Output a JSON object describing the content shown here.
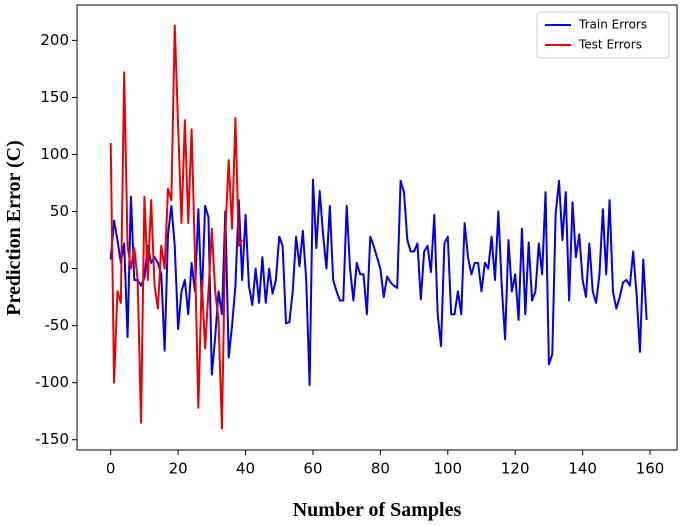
{
  "chart_data": {
    "type": "line",
    "xlabel": "Number of Samples",
    "ylabel": "Prediction Error (C)",
    "legend": "upper right",
    "xlim": [
      -10,
      168
    ],
    "xticks": [
      0,
      20,
      40,
      60,
      80,
      100,
      120,
      140,
      160
    ],
    "ylim": [
      -159,
      231
    ],
    "yticks": [
      -150,
      -100,
      -50,
      0,
      50,
      100,
      150,
      200
    ],
    "series": [
      {
        "name": "Train Errors",
        "color": "#0000ee",
        "x": [
          0,
          1,
          2,
          3,
          4,
          5,
          6,
          7,
          8,
          9,
          10,
          11,
          12,
          13,
          14,
          15,
          16,
          17,
          18,
          19,
          20,
          21,
          22,
          23,
          24,
          25,
          26,
          27,
          28,
          29,
          30,
          31,
          32,
          33,
          34,
          35,
          36,
          37,
          38,
          39,
          40,
          41,
          42,
          43,
          44,
          45,
          46,
          47,
          48,
          49,
          50,
          51,
          52,
          53,
          54,
          55,
          56,
          57,
          58,
          59,
          60,
          61,
          62,
          63,
          64,
          65,
          66,
          67,
          68,
          69,
          70,
          71,
          72,
          73,
          74,
          75,
          76,
          77,
          78,
          79,
          80,
          81,
          82,
          83,
          84,
          85,
          86,
          87,
          88,
          89,
          90,
          91,
          92,
          93,
          94,
          95,
          96,
          97,
          98,
          99,
          100,
          101,
          102,
          103,
          104,
          105,
          106,
          107,
          108,
          109,
          110,
          111,
          112,
          113,
          114,
          115,
          116,
          117,
          118,
          119,
          120,
          121,
          122,
          123,
          124,
          125,
          126,
          127,
          128,
          129,
          130,
          131,
          132,
          133,
          134,
          135,
          136,
          137,
          138,
          139,
          140,
          141,
          142,
          143,
          144,
          145,
          146,
          147,
          148,
          149,
          150,
          151,
          152,
          153,
          154,
          155,
          156,
          157,
          158,
          159
        ],
        "values": [
          8,
          42,
          25,
          5,
          22,
          -60,
          63,
          -10,
          -10,
          -15,
          -8,
          20,
          5,
          10,
          5,
          -5,
          -72,
          30,
          55,
          20,
          -53,
          -20,
          -10,
          -40,
          5,
          -20,
          52,
          -30,
          55,
          45,
          -93,
          -60,
          -20,
          -40,
          50,
          -78,
          -50,
          -15,
          60,
          -10,
          47,
          -15,
          -32,
          0,
          -30,
          10,
          -30,
          0,
          -22,
          -10,
          28,
          20,
          -48,
          -47,
          -20,
          28,
          2,
          33,
          -10,
          -102,
          78,
          18,
          68,
          30,
          0,
          55,
          -10,
          -20,
          -28,
          -28,
          55,
          0,
          -28,
          5,
          -5,
          -5,
          -40,
          28,
          20,
          10,
          0,
          -25,
          -7,
          -12,
          -15,
          -17,
          77,
          67,
          25,
          15,
          15,
          22,
          -27,
          15,
          20,
          -3,
          47,
          -40,
          -68,
          22,
          28,
          -40,
          -40,
          -20,
          -40,
          40,
          10,
          -5,
          5,
          5,
          -20,
          5,
          0,
          28,
          -10,
          50,
          -15,
          -62,
          25,
          -20,
          -5,
          -45,
          35,
          -40,
          23,
          -28,
          -20,
          22,
          -5,
          67,
          -84,
          -75,
          48,
          77,
          25,
          67,
          -28,
          58,
          10,
          30,
          -10,
          -25,
          22,
          -20,
          -30,
          -5,
          52,
          -5,
          60,
          -20,
          -35,
          -25,
          -12,
          -10,
          -15,
          15,
          -22,
          -73,
          8,
          -45
        ]
      },
      {
        "name": "Test Errors",
        "color": "#ee0000",
        "x": [
          0,
          1,
          2,
          3,
          4,
          5,
          6,
          7,
          8,
          9,
          10,
          11,
          12,
          13,
          14,
          15,
          16,
          17,
          18,
          19,
          20,
          21,
          22,
          23,
          24,
          25,
          26,
          27,
          28,
          29,
          30,
          31,
          32,
          33,
          34,
          35,
          36,
          37,
          38,
          39
        ],
        "values": [
          110,
          -100,
          -20,
          -30,
          172,
          20,
          0,
          18,
          -10,
          -135,
          63,
          -10,
          60,
          -15,
          -35,
          20,
          0,
          70,
          60,
          213,
          125,
          40,
          130,
          40,
          122,
          10,
          -122,
          -10,
          -70,
          -20,
          35,
          -20,
          -45,
          -140,
          30,
          95,
          35,
          132,
          20,
          25
        ]
      }
    ]
  }
}
